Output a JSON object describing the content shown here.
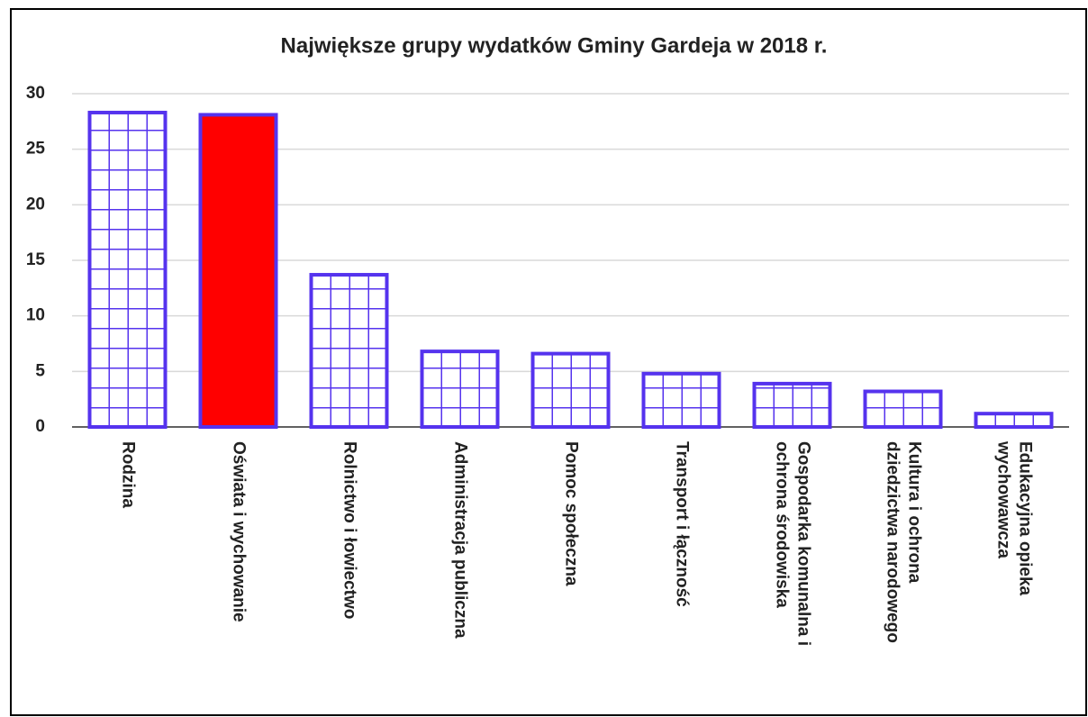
{
  "chart_data": {
    "type": "bar",
    "title": "Największe grupy wydatków Gminy Gardeja w 2018 r.",
    "categories": [
      [
        "Rodzina"
      ],
      [
        "Oświata i wychowanie"
      ],
      [
        "Rolnictwo i łowiectwo"
      ],
      [
        "Administracja publiczna"
      ],
      [
        "Pomoc społeczna"
      ],
      [
        "Transport i łączność"
      ],
      [
        "Gospodarka komunalna i",
        "ochrona środowiska"
      ],
      [
        "Kultura i ochrona",
        "dziedzictwa narodowego"
      ],
      [
        "Edukacyjna opieka",
        "wychowawcza"
      ]
    ],
    "values": [
      28.3,
      28.1,
      13.7,
      6.8,
      6.6,
      4.8,
      3.9,
      3.2,
      1.2
    ],
    "edge_color": "#5533ee",
    "fills": [
      "grid",
      "#ff0000",
      "grid",
      "grid",
      "grid",
      "grid",
      "grid",
      "grid",
      "grid"
    ],
    "ylim": [
      0,
      30
    ],
    "yticks": [
      0,
      5,
      10,
      15,
      20,
      25,
      30
    ],
    "grid": true
  }
}
